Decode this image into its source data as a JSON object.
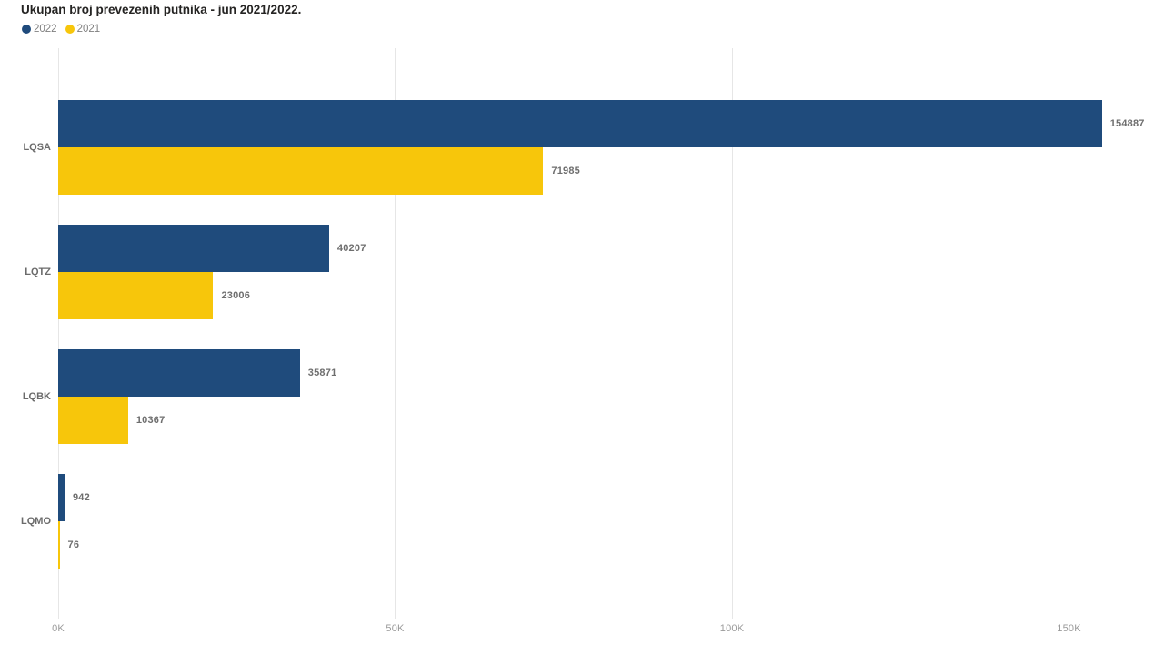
{
  "title": "Ukupan broj prevezenih putnika - jun 2021/2022.",
  "chart_data": {
    "type": "bar",
    "orientation": "horizontal",
    "title": "Ukupan broj prevezenih putnika - jun 2021/2022.",
    "categories": [
      "LQSA",
      "LQTZ",
      "LQBK",
      "LQMO"
    ],
    "series": [
      {
        "name": "2022",
        "color": "#1f4b7c",
        "values": [
          154887,
          40207,
          35871,
          942
        ]
      },
      {
        "name": "2021",
        "color": "#f7c60b",
        "values": [
          71985,
          23006,
          10367,
          76
        ]
      }
    ],
    "data_labels": [
      "154887",
      "71985",
      "40207",
      "23006",
      "35871",
      "10367",
      "942",
      "76"
    ],
    "x_ticks": [
      "0K",
      "50K",
      "100K",
      "150K"
    ],
    "x_tick_values": [
      0,
      50000,
      100000,
      150000
    ],
    "xlim": [
      0,
      163000
    ],
    "grid": true,
    "legend_position": "top-left",
    "colors": {
      "series_2022": "#1f4b7c",
      "series_2021": "#f7c60b",
      "gridline": "#e6e6e6",
      "title_text": "#252423",
      "label_text": "#6e6e6e",
      "axis_text": "#9a9a9a",
      "legend_text": "#7f7f7f",
      "background": "#ffffff"
    }
  }
}
